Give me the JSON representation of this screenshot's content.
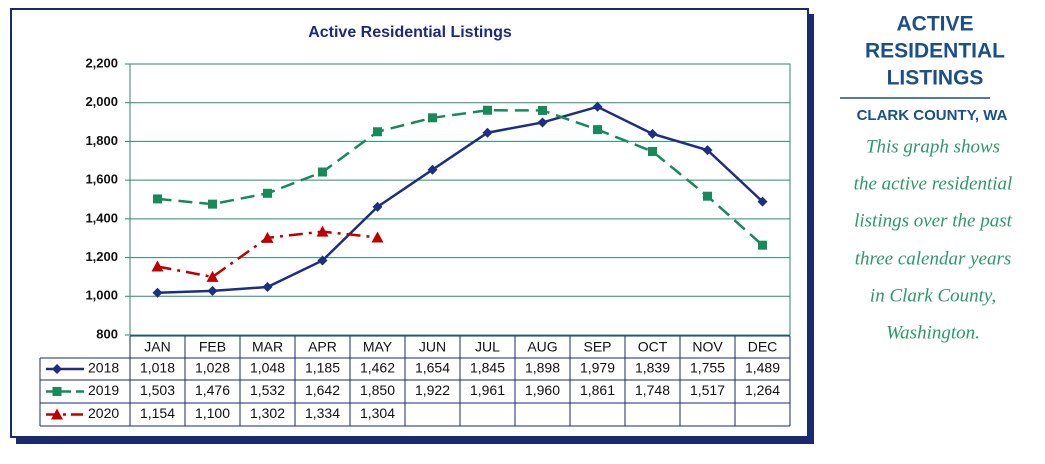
{
  "chart_data": {
    "type": "line",
    "title": "Active Residential Listings",
    "categories": [
      "JAN",
      "FEB",
      "MAR",
      "APR",
      "MAY",
      "JUN",
      "JUL",
      "AUG",
      "SEP",
      "OCT",
      "NOV",
      "DEC"
    ],
    "series": [
      {
        "name": "2018",
        "color": "#1c2f80",
        "marker": "diamond",
        "line_style": "solid",
        "values": [
          1018,
          1028,
          1048,
          1185,
          1462,
          1654,
          1845,
          1898,
          1979,
          1839,
          1755,
          1489
        ],
        "value_labels": [
          "1,018",
          "1,028",
          "1,048",
          "1,185",
          "1,462",
          "1,654",
          "1,845",
          "1,898",
          "1,979",
          "1,839",
          "1,755",
          "1,489"
        ]
      },
      {
        "name": "2019",
        "color": "#178a5c",
        "marker": "square",
        "line_style": "dashed",
        "values": [
          1503,
          1476,
          1532,
          1642,
          1850,
          1922,
          1961,
          1960,
          1861,
          1748,
          1517,
          1264
        ],
        "value_labels": [
          "1,503",
          "1,476",
          "1,532",
          "1,642",
          "1,850",
          "1,922",
          "1,961",
          "1,960",
          "1,861",
          "1,748",
          "1,517",
          "1,264"
        ]
      },
      {
        "name": "2020",
        "color": "#c00000",
        "marker": "triangle",
        "line_style": "dashdot",
        "values": [
          1154,
          1100,
          1302,
          1334,
          1304,
          null,
          null,
          null,
          null,
          null,
          null,
          null
        ],
        "value_labels": [
          "1,154",
          "1,100",
          "1,302",
          "1,334",
          "1,304",
          null,
          null,
          null,
          null,
          null,
          null,
          null
        ]
      }
    ],
    "ylim": [
      800,
      2200
    ],
    "yticks": [
      {
        "value": 800,
        "label": "800"
      },
      {
        "value": 1000,
        "label": "1,000"
      },
      {
        "value": 1200,
        "label": "1,200"
      },
      {
        "value": 1400,
        "label": "1,400"
      },
      {
        "value": 1600,
        "label": "1,600"
      },
      {
        "value": 1800,
        "label": "1,800"
      },
      {
        "value": 2000,
        "label": "2,000"
      },
      {
        "value": 2200,
        "label": "2,200"
      }
    ],
    "grid": true
  },
  "sidebar": {
    "heading": [
      "ACTIVE",
      "RESIDENTIAL",
      "LISTINGS"
    ],
    "subheading": "CLARK COUNTY, WA",
    "text": [
      "This graph shows",
      "the active residential",
      "listings over the past",
      "three calendar years",
      "in Clark County,",
      "Washington."
    ]
  }
}
